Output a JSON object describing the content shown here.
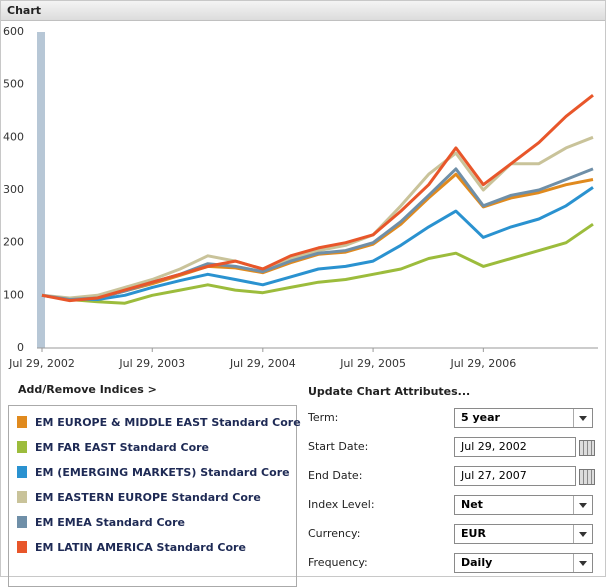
{
  "header": {
    "title": "Chart"
  },
  "chart_data": {
    "type": "line",
    "x": [
      "2002-07-29",
      "2002-10-29",
      "2003-01-29",
      "2003-04-29",
      "2003-07-29",
      "2003-10-29",
      "2004-01-29",
      "2004-04-29",
      "2004-07-29",
      "2004-10-29",
      "2005-01-29",
      "2005-04-29",
      "2005-07-29",
      "2005-10-29",
      "2006-01-29",
      "2006-04-29",
      "2006-07-29",
      "2006-10-29",
      "2007-01-29",
      "2007-04-29",
      "2007-07-27"
    ],
    "xlim": [
      "2002-07-29",
      "2007-07-27"
    ],
    "xticks": [
      {
        "value": "2002-07-29",
        "label": "Jul 29, 2002"
      },
      {
        "value": "2003-07-29",
        "label": "Jul 29, 2003"
      },
      {
        "value": "2004-07-29",
        "label": "Jul 29, 2004"
      },
      {
        "value": "2005-07-29",
        "label": "Jul 29, 2005"
      },
      {
        "value": "2006-07-29",
        "label": "Jul 29, 2006"
      }
    ],
    "ylim": [
      0,
      600
    ],
    "yticks": [
      0,
      100,
      200,
      300,
      400,
      500,
      600
    ],
    "grid": false,
    "series": [
      {
        "name": "EM EUROPE & MIDDLE EAST Standard Core",
        "color": "#e08a1e",
        "values": [
          100,
          92,
          95,
          108,
          122,
          138,
          155,
          152,
          143,
          162,
          178,
          182,
          197,
          235,
          285,
          330,
          268,
          285,
          295,
          310,
          320
        ]
      },
      {
        "name": "EM FAR EAST Standard Core",
        "color": "#9cbc3c",
        "values": [
          100,
          92,
          88,
          85,
          100,
          110,
          120,
          110,
          105,
          115,
          125,
          130,
          140,
          150,
          170,
          180,
          155,
          170,
          185,
          200,
          235
        ]
      },
      {
        "name": "EM (EMERGING MARKETS) Standard Core",
        "color": "#2a92d0",
        "values": [
          100,
          93,
          92,
          100,
          115,
          128,
          140,
          130,
          120,
          135,
          150,
          155,
          165,
          195,
          230,
          260,
          210,
          230,
          245,
          270,
          305
        ]
      },
      {
        "name": "EM EASTERN EUROPE Standard Core",
        "color": "#c9c39a",
        "values": [
          100,
          95,
          100,
          115,
          130,
          150,
          175,
          165,
          150,
          170,
          185,
          195,
          215,
          270,
          330,
          370,
          300,
          350,
          350,
          380,
          400
        ]
      },
      {
        "name": "EM EMEA Standard Core",
        "color": "#6f8fa8",
        "values": [
          100,
          92,
          95,
          108,
          125,
          140,
          160,
          155,
          145,
          165,
          180,
          185,
          200,
          240,
          290,
          340,
          270,
          290,
          300,
          320,
          340
        ]
      },
      {
        "name": "EM LATIN AMERICA Standard Core",
        "color": "#e8562a",
        "values": [
          100,
          90,
          95,
          110,
          125,
          140,
          155,
          165,
          150,
          175,
          190,
          200,
          215,
          260,
          310,
          380,
          310,
          350,
          390,
          440,
          480
        ]
      }
    ]
  },
  "indices": {
    "link": "Add/Remove Indices >"
  },
  "form": {
    "title": "Update Chart Attributes...",
    "fields": [
      {
        "label": "Term:",
        "value": "5 year"
      },
      {
        "label": "Start Date:",
        "value": "Jul 29, 2002"
      },
      {
        "label": "End Date:",
        "value": "Jul 27, 2007"
      },
      {
        "label": "Index Level:",
        "value": "Net"
      },
      {
        "label": "Currency:",
        "value": "EUR"
      },
      {
        "label": "Frequency:",
        "value": "Daily"
      }
    ]
  }
}
